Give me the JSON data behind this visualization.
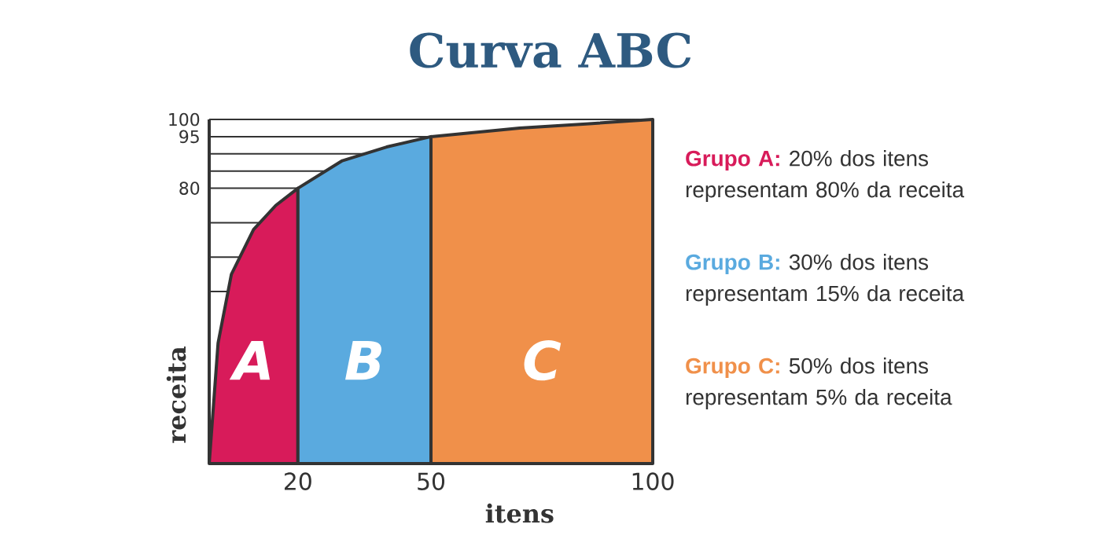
{
  "chart_data": {
    "type": "area",
    "title": "Curva ABC",
    "xlabel": "itens",
    "ylabel": "receita",
    "xlim": [
      0,
      100
    ],
    "ylim": [
      0,
      100
    ],
    "xticks": [
      20,
      50,
      100
    ],
    "yticks": [
      {
        "value": 50,
        "label": null
      },
      {
        "value": 60,
        "label": null
      },
      {
        "value": 70,
        "label": null
      },
      80,
      {
        "value": 85,
        "label": null
      },
      {
        "value": 90,
        "label": null
      },
      95,
      100
    ],
    "grid": "y",
    "series": [
      {
        "name": "A",
        "color": "#d81b5a",
        "x": [
          0,
          2,
          5,
          10,
          15,
          20
        ],
        "values": [
          0,
          35,
          55,
          68,
          75,
          80
        ]
      },
      {
        "name": "B",
        "color": "#5aaadf",
        "x": [
          20,
          30,
          40,
          50
        ],
        "values": [
          80,
          88,
          92,
          95
        ]
      },
      {
        "name": "C",
        "color": "#f0904a",
        "x": [
          50,
          70,
          85,
          100
        ],
        "values": [
          95,
          97.5,
          98.7,
          100
        ]
      }
    ],
    "annotations": [
      "Grupo A:",
      "20% dos itens representam 80% da receita",
      "Grupo B:",
      "30% dos itens representam 15% da receita",
      "Grupo C:",
      "50% dos itens representam 5% da receita"
    ]
  }
}
